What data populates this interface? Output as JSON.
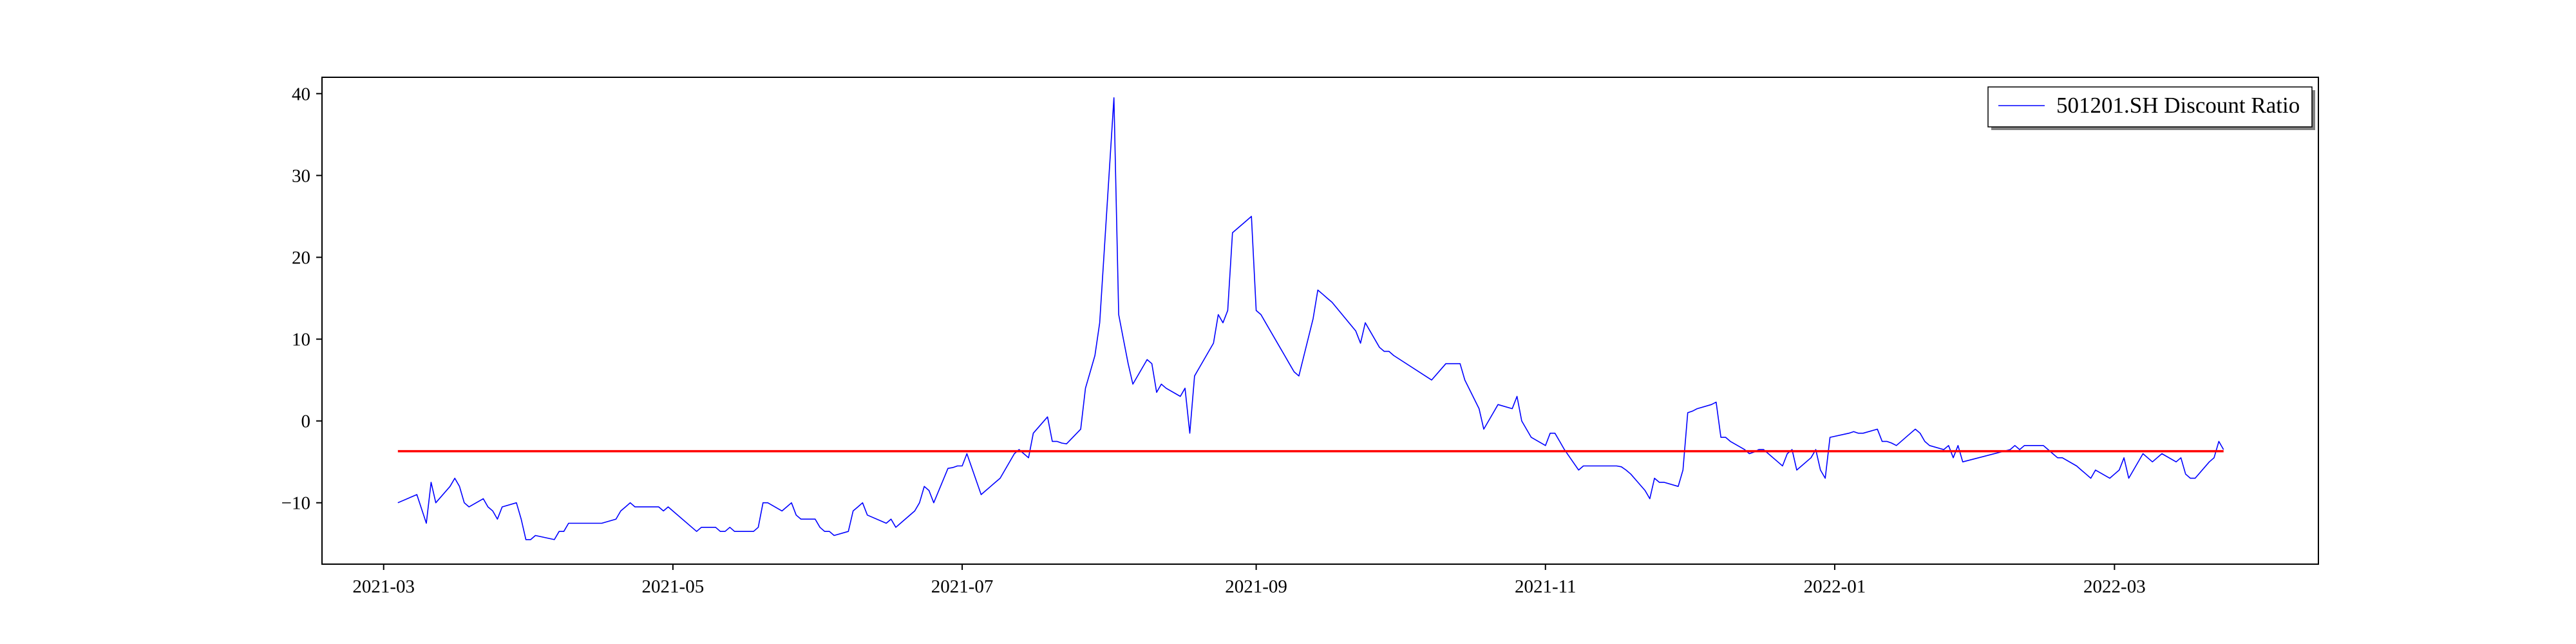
{
  "chart_data": {
    "type": "line",
    "title": "",
    "xlabel": "",
    "ylabel": "",
    "xlim": [
      "2021-02-16",
      "2022-04-13"
    ],
    "ylim": [
      -17.5,
      42
    ],
    "grid": false,
    "legend_placement": "top-right",
    "x_ticks": [
      "2021-03",
      "2021-05",
      "2021-07",
      "2021-09",
      "2021-11",
      "2022-01",
      "2022-03"
    ],
    "y_ticks": [
      -10,
      0,
      10,
      20,
      30,
      40
    ],
    "series": [
      {
        "name": "501201.SH Discount Ratio",
        "color": "#0000ff",
        "points": [
          [
            "2021-03-04",
            -10.0
          ],
          [
            "2021-03-08",
            -9.0
          ],
          [
            "2021-03-10",
            -12.5
          ],
          [
            "2021-03-11",
            -7.5
          ],
          [
            "2021-03-12",
            -10.0
          ],
          [
            "2021-03-15",
            -8.0
          ],
          [
            "2021-03-16",
            -7.0
          ],
          [
            "2021-03-17",
            -8.0
          ],
          [
            "2021-03-18",
            -10.0
          ],
          [
            "2021-03-19",
            -10.5
          ],
          [
            "2021-03-22",
            -9.5
          ],
          [
            "2021-03-23",
            -10.5
          ],
          [
            "2021-03-24",
            -11.0
          ],
          [
            "2021-03-25",
            -12.0
          ],
          [
            "2021-03-26",
            -10.5
          ],
          [
            "2021-03-29",
            -10.0
          ],
          [
            "2021-03-30",
            -12.0
          ],
          [
            "2021-03-31",
            -14.5
          ],
          [
            "2021-04-01",
            -14.5
          ],
          [
            "2021-04-02",
            -14.0
          ],
          [
            "2021-04-06",
            -14.5
          ],
          [
            "2021-04-07",
            -13.5
          ],
          [
            "2021-04-08",
            -13.5
          ],
          [
            "2021-04-09",
            -12.5
          ],
          [
            "2021-04-12",
            -12.5
          ],
          [
            "2021-04-13",
            -12.5
          ],
          [
            "2021-04-14",
            -12.5
          ],
          [
            "2021-04-15",
            -12.5
          ],
          [
            "2021-04-16",
            -12.5
          ],
          [
            "2021-04-19",
            -12.0
          ],
          [
            "2021-04-20",
            -11.0
          ],
          [
            "2021-04-21",
            -10.5
          ],
          [
            "2021-04-22",
            -10.0
          ],
          [
            "2021-04-23",
            -10.5
          ],
          [
            "2021-04-26",
            -10.5
          ],
          [
            "2021-04-27",
            -10.5
          ],
          [
            "2021-04-28",
            -10.5
          ],
          [
            "2021-04-29",
            -11.0
          ],
          [
            "2021-04-30",
            -10.5
          ],
          [
            "2021-05-06",
            -13.5
          ],
          [
            "2021-05-07",
            -13.0
          ],
          [
            "2021-05-10",
            -13.0
          ],
          [
            "2021-05-11",
            -13.5
          ],
          [
            "2021-05-12",
            -13.5
          ],
          [
            "2021-05-13",
            -13.0
          ],
          [
            "2021-05-14",
            -13.5
          ],
          [
            "2021-05-17",
            -13.5
          ],
          [
            "2021-05-18",
            -13.5
          ],
          [
            "2021-05-19",
            -13.0
          ],
          [
            "2021-05-20",
            -10.0
          ],
          [
            "2021-05-21",
            -10.0
          ],
          [
            "2021-05-24",
            -11.0
          ],
          [
            "2021-05-25",
            -10.5
          ],
          [
            "2021-05-26",
            -10.0
          ],
          [
            "2021-05-27",
            -11.5
          ],
          [
            "2021-05-28",
            -12.0
          ],
          [
            "2021-05-31",
            -12.0
          ],
          [
            "2021-06-01",
            -13.0
          ],
          [
            "2021-06-02",
            -13.5
          ],
          [
            "2021-06-03",
            -13.5
          ],
          [
            "2021-06-04",
            -14.0
          ],
          [
            "2021-06-07",
            -13.5
          ],
          [
            "2021-06-08",
            -11.0
          ],
          [
            "2021-06-09",
            -10.5
          ],
          [
            "2021-06-10",
            -10.0
          ],
          [
            "2021-06-11",
            -11.5
          ],
          [
            "2021-06-15",
            -12.5
          ],
          [
            "2021-06-16",
            -12.0
          ],
          [
            "2021-06-17",
            -13.0
          ],
          [
            "2021-06-18",
            -12.5
          ],
          [
            "2021-06-21",
            -11.0
          ],
          [
            "2021-06-22",
            -10.0
          ],
          [
            "2021-06-23",
            -8.0
          ],
          [
            "2021-06-24",
            -8.5
          ],
          [
            "2021-06-25",
            -10.0
          ],
          [
            "2021-06-28",
            -5.8
          ],
          [
            "2021-06-29",
            -5.7
          ],
          [
            "2021-06-30",
            -5.5
          ],
          [
            "2021-07-01",
            -5.5
          ],
          [
            "2021-07-02",
            -4.0
          ],
          [
            "2021-07-05",
            -9.0
          ],
          [
            "2021-07-06",
            -8.5
          ],
          [
            "2021-07-07",
            -8.0
          ],
          [
            "2021-07-08",
            -7.5
          ],
          [
            "2021-07-09",
            -7.0
          ],
          [
            "2021-07-12",
            -4.0
          ],
          [
            "2021-07-13",
            -3.5
          ],
          [
            "2021-07-14",
            -4.0
          ],
          [
            "2021-07-15",
            -4.5
          ],
          [
            "2021-07-16",
            -1.5
          ],
          [
            "2021-07-19",
            0.5
          ],
          [
            "2021-07-20",
            -2.5
          ],
          [
            "2021-07-21",
            -2.5
          ],
          [
            "2021-07-22",
            -2.7
          ],
          [
            "2021-07-23",
            -2.8
          ],
          [
            "2021-07-26",
            -1.0
          ],
          [
            "2021-07-27",
            4.0
          ],
          [
            "2021-07-28",
            6.0
          ],
          [
            "2021-07-29",
            8.0
          ],
          [
            "2021-07-30",
            12.0
          ],
          [
            "2021-08-02",
            39.5
          ],
          [
            "2021-08-03",
            13.0
          ],
          [
            "2021-08-04",
            10.0
          ],
          [
            "2021-08-05",
            7.0
          ],
          [
            "2021-08-06",
            4.5
          ],
          [
            "2021-08-09",
            7.5
          ],
          [
            "2021-08-10",
            7.0
          ],
          [
            "2021-08-11",
            3.5
          ],
          [
            "2021-08-12",
            4.5
          ],
          [
            "2021-08-13",
            4.0
          ],
          [
            "2021-08-16",
            3.0
          ],
          [
            "2021-08-17",
            4.0
          ],
          [
            "2021-08-18",
            -1.5
          ],
          [
            "2021-08-19",
            5.5
          ],
          [
            "2021-08-20",
            6.5
          ],
          [
            "2021-08-23",
            9.5
          ],
          [
            "2021-08-24",
            13.0
          ],
          [
            "2021-08-25",
            12.0
          ],
          [
            "2021-08-26",
            13.5
          ],
          [
            "2021-08-27",
            23.0
          ],
          [
            "2021-08-30",
            24.5
          ],
          [
            "2021-08-31",
            25.0
          ],
          [
            "2021-09-01",
            13.5
          ],
          [
            "2021-09-02",
            13.0
          ],
          [
            "2021-09-03",
            12.0
          ],
          [
            "2021-09-06",
            9.0
          ],
          [
            "2021-09-07",
            8.0
          ],
          [
            "2021-09-08",
            7.0
          ],
          [
            "2021-09-09",
            6.0
          ],
          [
            "2021-09-10",
            5.5
          ],
          [
            "2021-09-13",
            12.5
          ],
          [
            "2021-09-14",
            16.0
          ],
          [
            "2021-09-15",
            15.5
          ],
          [
            "2021-09-16",
            15.0
          ],
          [
            "2021-09-17",
            14.5
          ],
          [
            "2021-09-22",
            11.0
          ],
          [
            "2021-09-23",
            9.5
          ],
          [
            "2021-09-24",
            12.0
          ],
          [
            "2021-09-27",
            9.0
          ],
          [
            "2021-09-28",
            8.5
          ],
          [
            "2021-09-29",
            8.5
          ],
          [
            "2021-09-30",
            8.0
          ],
          [
            "2021-10-08",
            5.0
          ],
          [
            "2021-10-11",
            7.0
          ],
          [
            "2021-10-12",
            7.0
          ],
          [
            "2021-10-13",
            7.0
          ],
          [
            "2021-10-14",
            7.0
          ],
          [
            "2021-10-15",
            5.0
          ],
          [
            "2021-10-18",
            1.5
          ],
          [
            "2021-10-19",
            -1.0
          ],
          [
            "2021-10-20",
            0.0
          ],
          [
            "2021-10-21",
            1.0
          ],
          [
            "2021-10-22",
            2.0
          ],
          [
            "2021-10-25",
            1.5
          ],
          [
            "2021-10-26",
            3.0
          ],
          [
            "2021-10-27",
            0.0
          ],
          [
            "2021-10-28",
            -1.0
          ],
          [
            "2021-10-29",
            -2.0
          ],
          [
            "2021-11-01",
            -3.0
          ],
          [
            "2021-11-02",
            -1.5
          ],
          [
            "2021-11-03",
            -1.5
          ],
          [
            "2021-11-04",
            -2.5
          ],
          [
            "2021-11-05",
            -3.5
          ],
          [
            "2021-11-08",
            -6.0
          ],
          [
            "2021-11-09",
            -5.5
          ],
          [
            "2021-11-10",
            -5.5
          ],
          [
            "2021-11-11",
            -5.5
          ],
          [
            "2021-11-12",
            -5.5
          ],
          [
            "2021-11-15",
            -5.5
          ],
          [
            "2021-11-16",
            -5.5
          ],
          [
            "2021-11-17",
            -5.6
          ],
          [
            "2021-11-18",
            -6.0
          ],
          [
            "2021-11-19",
            -6.5
          ],
          [
            "2021-11-22",
            -8.5
          ],
          [
            "2021-11-23",
            -9.5
          ],
          [
            "2021-11-24",
            -7.0
          ],
          [
            "2021-11-25",
            -7.5
          ],
          [
            "2021-11-26",
            -7.5
          ],
          [
            "2021-11-29",
            -8.0
          ],
          [
            "2021-11-30",
            -6.0
          ],
          [
            "2021-12-01",
            1.0
          ],
          [
            "2021-12-02",
            1.2
          ],
          [
            "2021-12-03",
            1.5
          ],
          [
            "2021-12-06",
            2.0
          ],
          [
            "2021-12-07",
            2.3
          ],
          [
            "2021-12-08",
            -2.0
          ],
          [
            "2021-12-09",
            -2.0
          ],
          [
            "2021-12-10",
            -2.5
          ],
          [
            "2021-12-13",
            -3.5
          ],
          [
            "2021-12-14",
            -4.0
          ],
          [
            "2021-12-15",
            -3.8
          ],
          [
            "2021-12-16",
            -3.5
          ],
          [
            "2021-12-17",
            -3.5
          ],
          [
            "2021-12-20",
            -5.0
          ],
          [
            "2021-12-21",
            -5.5
          ],
          [
            "2021-12-22",
            -4.0
          ],
          [
            "2021-12-23",
            -3.5
          ],
          [
            "2021-12-24",
            -6.0
          ],
          [
            "2021-12-27",
            -4.5
          ],
          [
            "2021-12-28",
            -3.5
          ],
          [
            "2021-12-29",
            -6.0
          ],
          [
            "2021-12-30",
            -7.0
          ],
          [
            "2021-12-31",
            -2.0
          ],
          [
            "2022-01-04",
            -1.5
          ],
          [
            "2022-01-05",
            -1.3
          ],
          [
            "2022-01-06",
            -1.5
          ],
          [
            "2022-01-07",
            -1.5
          ],
          [
            "2022-01-10",
            -1.0
          ],
          [
            "2022-01-11",
            -2.5
          ],
          [
            "2022-01-12",
            -2.5
          ],
          [
            "2022-01-13",
            -2.7
          ],
          [
            "2022-01-14",
            -3.0
          ],
          [
            "2022-01-17",
            -1.5
          ],
          [
            "2022-01-18",
            -1.0
          ],
          [
            "2022-01-19",
            -1.5
          ],
          [
            "2022-01-20",
            -2.5
          ],
          [
            "2022-01-21",
            -3.0
          ],
          [
            "2022-01-24",
            -3.5
          ],
          [
            "2022-01-25",
            -3.0
          ],
          [
            "2022-01-26",
            -4.5
          ],
          [
            "2022-01-27",
            -3.0
          ],
          [
            "2022-01-28",
            -5.0
          ],
          [
            "2022-02-07",
            -3.5
          ],
          [
            "2022-02-08",
            -3.0
          ],
          [
            "2022-02-09",
            -3.5
          ],
          [
            "2022-02-10",
            -3.0
          ],
          [
            "2022-02-11",
            -3.0
          ],
          [
            "2022-02-14",
            -3.0
          ],
          [
            "2022-02-15",
            -3.5
          ],
          [
            "2022-02-16",
            -4.0
          ],
          [
            "2022-02-17",
            -4.5
          ],
          [
            "2022-02-18",
            -4.5
          ],
          [
            "2022-02-21",
            -5.5
          ],
          [
            "2022-02-22",
            -6.0
          ],
          [
            "2022-02-23",
            -6.5
          ],
          [
            "2022-02-24",
            -7.0
          ],
          [
            "2022-02-25",
            -6.0
          ],
          [
            "2022-02-28",
            -7.0
          ],
          [
            "2022-03-01",
            -6.5
          ],
          [
            "2022-03-02",
            -6.0
          ],
          [
            "2022-03-03",
            -4.5
          ],
          [
            "2022-03-04",
            -7.0
          ],
          [
            "2022-03-07",
            -4.0
          ],
          [
            "2022-03-08",
            -4.5
          ],
          [
            "2022-03-09",
            -5.0
          ],
          [
            "2022-03-10",
            -4.5
          ],
          [
            "2022-03-11",
            -4.0
          ],
          [
            "2022-03-14",
            -5.0
          ],
          [
            "2022-03-15",
            -4.5
          ],
          [
            "2022-03-16",
            -6.5
          ],
          [
            "2022-03-17",
            -7.0
          ],
          [
            "2022-03-18",
            -7.0
          ],
          [
            "2022-03-21",
            -5.0
          ],
          [
            "2022-03-22",
            -4.5
          ],
          [
            "2022-03-23",
            -2.5
          ],
          [
            "2022-03-24",
            -3.5
          ]
        ]
      }
    ],
    "reference_line": {
      "y": -3.7,
      "color": "#ff0000"
    }
  }
}
